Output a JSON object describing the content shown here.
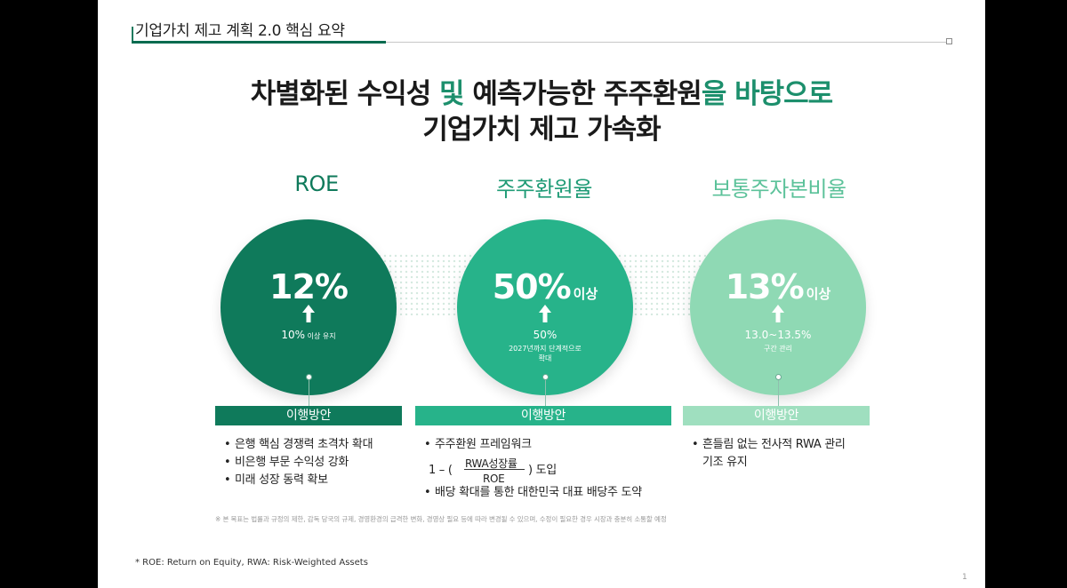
{
  "header": {
    "title": "기업가치 제고 계획 2.0 핵심 요약"
  },
  "headline": {
    "line1_a": "차별화된 수익성",
    "line1_b": " 및 ",
    "line1_c": "예측가능한 주주환원",
    "line1_d": "을 바탕으로",
    "line2": "기업가치 제고 가속화"
  },
  "colors": {
    "dark_green": "#0f7a5b",
    "mid_green": "#27b38a",
    "light_green": "#8fd9b4",
    "headline_accent": "#1c8f6c"
  },
  "columns": [
    {
      "title": "ROE",
      "main_value": "12%",
      "main_suffix": "",
      "arrow_icon": "up-arrow-icon",
      "sub_value": "10%",
      "sub_small": " 이상 유지",
      "note": "",
      "impl_label": "이행방안",
      "bullets": [
        "은행 핵심 경쟁력 초격차 확대",
        "비은행 부문 수익성 강화",
        "미래 성장 동력 확보"
      ]
    },
    {
      "title": "주주환원율",
      "main_value": "50%",
      "main_suffix": "이상",
      "arrow_icon": "up-arrow-icon",
      "sub_value": "50%",
      "sub_small": "",
      "note_line1": "2027년까지 단계적으로",
      "note_line2": "확대",
      "impl_label": "이행방안",
      "bullet1": "주주환원 프레임워크",
      "formula_prefix": "1 – (",
      "formula_numerator": "RWA성장률",
      "formula_denominator": "ROE",
      "formula_suffix": ") 도입",
      "bullet3": "배당 확대를 통한 대한민국 대표 배당주 도약"
    },
    {
      "title": "보통주자본비율",
      "main_value": "13%",
      "main_suffix": "이상",
      "arrow_icon": "up-arrow-icon",
      "sub_value": "13.0~13.5%",
      "sub_small": "",
      "note_line1": "구간 관리",
      "impl_label": "이행방안",
      "bullet1": "흔들림 없는 전사적 RWA 관리",
      "bullet1_cont": "기조 유지"
    }
  ],
  "footnotes": {
    "disclaimer": "※ 본 목표는 법률과 규정의 제한, 감독 당국의 규제, 경영환경의 급격한 변화, 경영상 필요 등에 따라 변경될 수 있으며, 수정이 필요한 경우 시장과 충분히 소통할 예정",
    "abbrev": "* ROE: Return on Equity, RWA: Risk-Weighted Assets",
    "page": "1"
  }
}
